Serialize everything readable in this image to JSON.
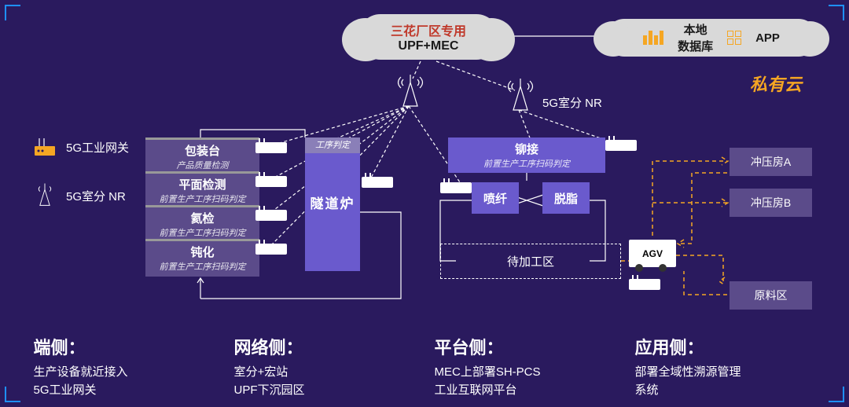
{
  "colors": {
    "bg": "#2a1a5e",
    "accent": "#f5a623",
    "cloud": "#d9d9d9",
    "box": "#5b4b8a",
    "box2": "#6a5acd",
    "line": "#ffffff",
    "corner": "#1e90ff",
    "red": "#c0392b"
  },
  "cloud_upf": {
    "line1": "三花厂区专用",
    "line2": "UPF+MEC"
  },
  "cloud_local": {
    "db": "本地",
    "db2": "数据库",
    "app": "APP"
  },
  "private_cloud": "私有云",
  "nr_label": "5G室分 NR",
  "legend": {
    "gw": "5G工业网关",
    "nr": "5G室分 NR"
  },
  "left_stack": [
    {
      "t": "包装台",
      "s": "产品质量检测"
    },
    {
      "t": "平面检测",
      "s": "前置生产工序扫码判定"
    },
    {
      "t": "氦检",
      "s": "前置生产工序扫码判定"
    },
    {
      "t": "钝化",
      "s": "前置生产工序扫码判定"
    }
  ],
  "furnace": {
    "top": "工序判定",
    "name": "隧道炉"
  },
  "rivet": {
    "t": "铆接",
    "s": "前置生产工序扫码判定"
  },
  "spray": "喷纤",
  "degrease": "脱脂",
  "waiting": "待加工区",
  "press_a": "冲压房A",
  "press_b": "冲压房B",
  "raw": "原料区",
  "agv": "AGV",
  "bottom": [
    {
      "h": "端侧：",
      "d": "生产设备就近接入\n5G工业网关"
    },
    {
      "h": "网络侧：",
      "d": "室分+宏站\nUPF下沉园区"
    },
    {
      "h": "平台侧：",
      "d": "MEC上部署SH-PCS\n工业互联网平台"
    },
    {
      "h": "应用侧：",
      "d": "部署全域性溯源管理\n系统"
    }
  ]
}
